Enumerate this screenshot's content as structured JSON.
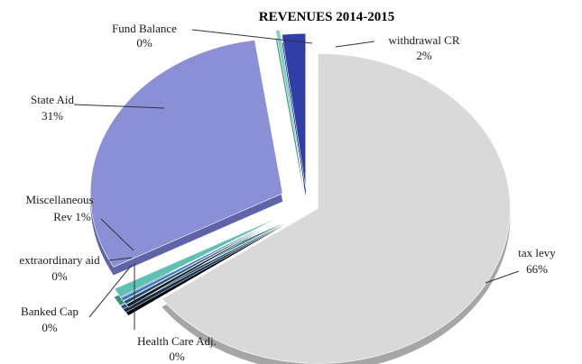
{
  "chart_data": {
    "type": "pie",
    "title": "REVENUES 2014-2015",
    "slices": [
      {
        "label": "tax levy",
        "value_label": "66%",
        "value": 66,
        "color": "#d9d9d9",
        "depth_color": "#a6a6a6"
      },
      {
        "label": "Health Care Adj.",
        "value_label": "0%",
        "value": 0,
        "color": "#1a1a1a",
        "depth_color": "#000000"
      },
      {
        "label": "Banked Cap",
        "value_label": "0%",
        "value": 0,
        "color": "#1f4e79",
        "depth_color": "#12304a"
      },
      {
        "label": "extraordinary aid",
        "value_label": "0%",
        "value": 0,
        "color": "#4472c4",
        "depth_color": "#2c4c85"
      },
      {
        "label": "Miscellaneous Rev",
        "value_label": "1%",
        "value": 1,
        "color": "#5fc1b4",
        "depth_color": "#3c8a80"
      },
      {
        "label": "State Aid",
        "value_label": "31%",
        "value": 31,
        "color": "#8b8fd6",
        "depth_color": "#5f63a8"
      },
      {
        "label": "Fund Balance",
        "value_label": "0%",
        "value": 0,
        "color": "#7fd1c1",
        "depth_color": "#4e9a8c"
      },
      {
        "label": "withdrawal CR",
        "value_label": "2%",
        "value": 2,
        "color": "#2f3ea8",
        "depth_color": "#1c2670"
      }
    ],
    "labels": {
      "fund_balance": [
        "Fund Balance",
        "0%"
      ],
      "withdrawal_cr": [
        "withdrawal CR",
        "2%"
      ],
      "state_aid": [
        "State Aid",
        "31%"
      ],
      "misc_rev": [
        "Miscellaneous",
        "Rev 1%"
      ],
      "extraordinary_aid": [
        "extraordinary aid",
        "0%"
      ],
      "banked_cap": [
        "Banked Cap",
        "0%"
      ],
      "health_care": [
        "Health Care Adj.",
        "0%"
      ],
      "tax_levy": [
        "tax levy",
        "66%"
      ]
    },
    "legend": "none"
  }
}
